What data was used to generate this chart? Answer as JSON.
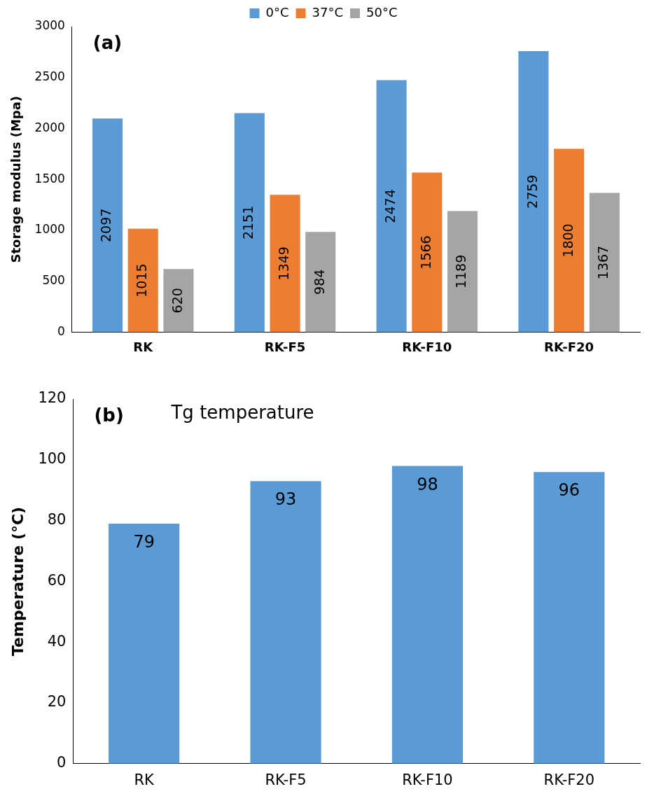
{
  "chart_data": [
    {
      "type": "bar",
      "annotations": [
        "(a)"
      ],
      "ylabel": "Storage modulus (Mpa)",
      "categories": [
        "RK",
        "RK-F5",
        "RK-F10",
        "RK-F20"
      ],
      "series": [
        {
          "name": "0°C",
          "color": "#5b9bd5",
          "values": [
            2097,
            2151,
            2474,
            2759
          ]
        },
        {
          "name": "37°C",
          "color": "#ed7d31",
          "values": [
            1015,
            1349,
            1566,
            1800
          ]
        },
        {
          "name": "50°C",
          "color": "#a5a5a5",
          "values": [
            620,
            984,
            1189,
            1367
          ]
        }
      ],
      "ylim": [
        0,
        3000
      ],
      "yticks": [
        0,
        500,
        1000,
        1500,
        2000,
        2500,
        3000
      ],
      "grid": false,
      "legend": "top",
      "data_labels": true
    },
    {
      "type": "bar",
      "title": "Tg temperature",
      "annotations": [
        "(b)"
      ],
      "ylabel": "Temperature (°C)",
      "categories": [
        "RK",
        "RK-F5",
        "RK-F10",
        "RK-F20"
      ],
      "values": [
        79,
        93,
        98,
        96
      ],
      "color": "#5b9bd5",
      "ylim": [
        0,
        120
      ],
      "yticks": [
        0,
        20,
        40,
        60,
        80,
        100,
        120
      ],
      "grid": false,
      "data_labels": true
    }
  ]
}
